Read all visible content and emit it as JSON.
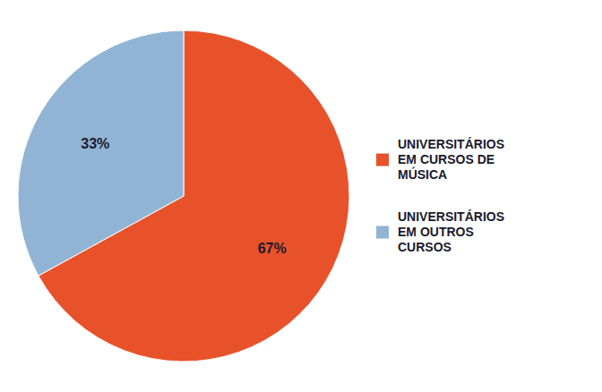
{
  "chart_data": {
    "type": "pie",
    "categories": [
      "UNIVERSITÁRIOS\nEM CURSOS DE\nMÚSICA",
      "UNIVERSITÁRIOS\nEM OUTROS\nCURSOS"
    ],
    "values": [
      67,
      33
    ],
    "value_labels": [
      "67%",
      "33%"
    ],
    "colors": [
      "#E8522A",
      "#91B4D5"
    ],
    "data_labels": true,
    "legend": "right"
  }
}
